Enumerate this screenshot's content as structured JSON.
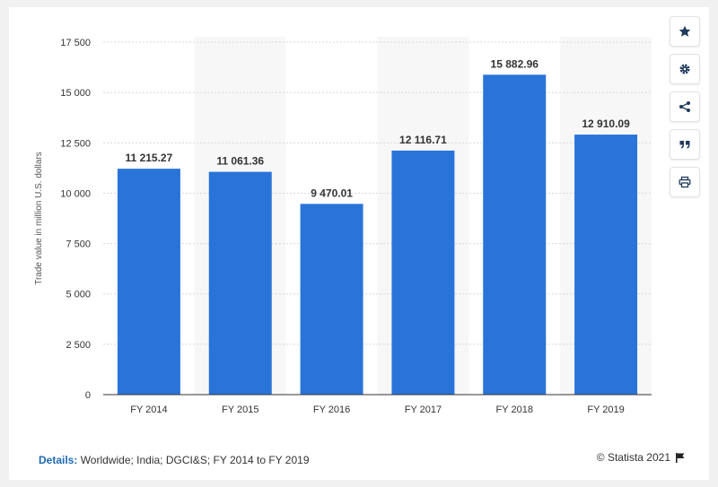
{
  "chart_data": {
    "type": "bar",
    "categories": [
      "FY 2014",
      "FY 2015",
      "FY 2016",
      "FY 2017",
      "FY 2018",
      "FY 2019"
    ],
    "values": [
      11215.27,
      11061.36,
      9470.01,
      12116.71,
      15882.96,
      12910.09
    ],
    "value_labels": [
      "11 215.27",
      "11 061.36",
      "9 470.01",
      "12 116.71",
      "15 882.96",
      "12 910.09"
    ],
    "title": "",
    "xlabel": "",
    "ylabel": "Trade value in million U.S. dollars",
    "ylim": [
      0,
      17500
    ],
    "yticks": [
      0,
      2500,
      5000,
      7500,
      10000,
      12500,
      15000,
      17500
    ],
    "ytick_labels": [
      "0",
      "2 500",
      "5 000",
      "7 500",
      "10 000",
      "12 500",
      "15 000",
      "17 500"
    ],
    "bar_color": "#2a74d9",
    "grid": true,
    "legend": "none"
  },
  "footer": {
    "details_label": "Details:",
    "details_text": " Worldwide; India; DGCI&S; FY 2014 to FY 2019",
    "credit": "© Statista 2021"
  },
  "toolbar": {
    "buttons": [
      {
        "name": "favorite",
        "icon": "star-icon"
      },
      {
        "name": "settings",
        "icon": "gear-icon"
      },
      {
        "name": "share",
        "icon": "share-icon"
      },
      {
        "name": "cite",
        "icon": "quote-icon"
      },
      {
        "name": "print",
        "icon": "print-icon"
      }
    ]
  },
  "colors": {
    "accent": "#1d6ab3",
    "icon": "#1f3a5c"
  }
}
